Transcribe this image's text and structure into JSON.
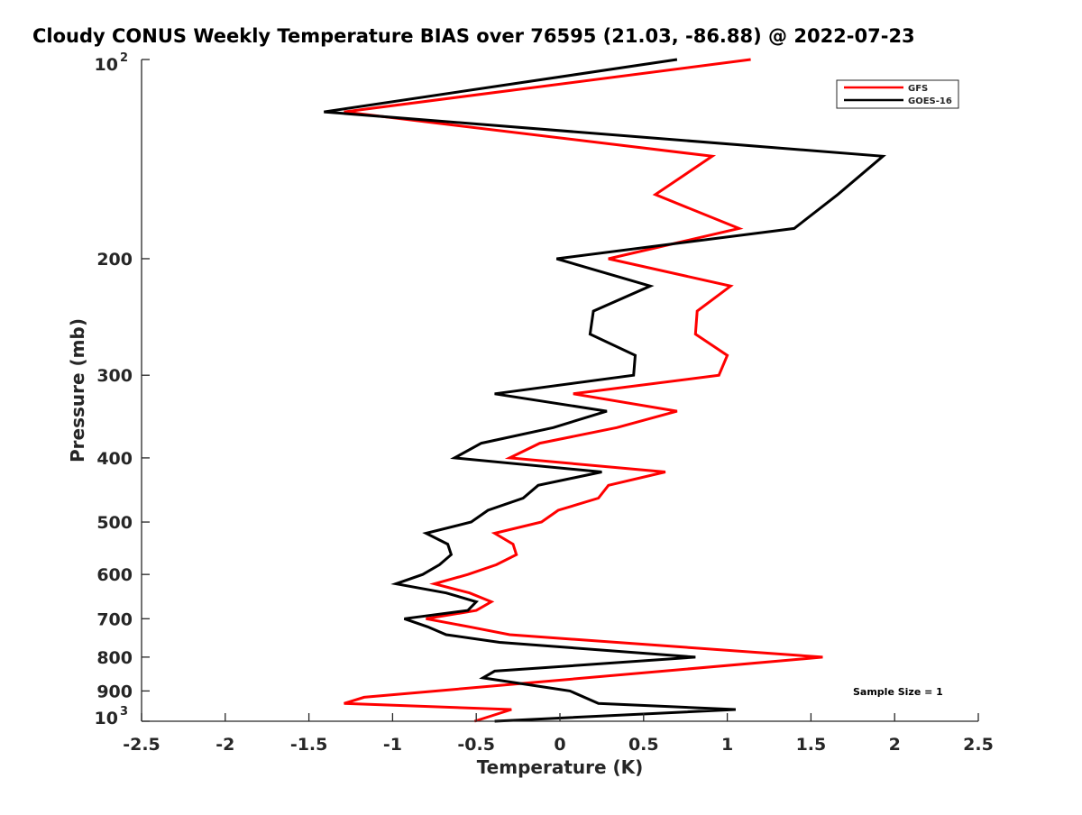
{
  "chart_data": {
    "type": "line",
    "title": "Cloudy CONUS Weekly Temperature BIAS over 76595 (21.03, -86.88) @ 2022-07-23",
    "xlabel": "Temperature (K)",
    "ylabel": "Pressure (mb)",
    "xlim": [
      -2.5,
      2.5
    ],
    "ylim": [
      100,
      1000
    ],
    "yscale": "log",
    "yreversed": true,
    "xticks": [
      -2.5,
      -2,
      -1.5,
      -1,
      -0.5,
      0,
      0.5,
      1,
      1.5,
      2,
      2.5
    ],
    "xtick_labels": [
      "-2.5",
      "-2",
      "-1.5",
      "-1",
      "-0.5",
      "0",
      "0.5",
      "1",
      "1.5",
      "2",
      "2.5"
    ],
    "yticks": [
      100,
      200,
      300,
      400,
      500,
      600,
      700,
      800,
      900,
      1000
    ],
    "ytick_labels": [
      {
        "base": "10",
        "exp": "2"
      },
      {
        "text": "200"
      },
      {
        "text": "300"
      },
      {
        "text": "400"
      },
      {
        "text": "500"
      },
      {
        "text": "600"
      },
      {
        "text": "700"
      },
      {
        "text": "800"
      },
      {
        "text": "900"
      },
      {
        "base": "10",
        "exp": "3"
      }
    ],
    "grid": false,
    "legend_position": "top-right",
    "annotation": "Sample Size = 1",
    "series": [
      {
        "name": "GFS",
        "color": "#ff0000",
        "pressure": [
          100,
          120,
          140,
          160,
          180,
          200,
          220,
          240,
          260,
          280,
          300,
          320,
          340,
          360,
          380,
          400,
          420,
          440,
          460,
          480,
          500,
          520,
          540,
          560,
          580,
          600,
          620,
          640,
          660,
          680,
          700,
          720,
          740,
          800,
          920,
          940,
          960,
          1000
        ],
        "temperature": [
          1.14,
          -1.29,
          0.91,
          0.57,
          1.07,
          0.29,
          1.02,
          0.82,
          0.81,
          1.0,
          0.95,
          0.08,
          0.7,
          0.34,
          -0.12,
          -0.3,
          0.63,
          0.29,
          0.23,
          -0.01,
          -0.11,
          -0.39,
          -0.28,
          -0.26,
          -0.38,
          -0.55,
          -0.75,
          -0.54,
          -0.41,
          -0.5,
          -0.8,
          -0.54,
          -0.3,
          1.57,
          -1.17,
          -1.29,
          -0.29,
          -0.51
        ]
      },
      {
        "name": "GOES-16",
        "color": "#000000",
        "pressure": [
          100,
          120,
          140,
          160,
          180,
          200,
          220,
          240,
          260,
          280,
          300,
          320,
          340,
          360,
          380,
          400,
          420,
          440,
          460,
          480,
          500,
          520,
          540,
          560,
          580,
          600,
          620,
          640,
          660,
          680,
          700,
          720,
          740,
          760,
          800,
          840,
          860,
          900,
          940,
          960,
          1000
        ],
        "temperature": [
          0.7,
          -1.41,
          1.93,
          1.66,
          1.4,
          -0.02,
          0.54,
          0.2,
          0.18,
          0.45,
          0.44,
          -0.39,
          0.28,
          -0.04,
          -0.47,
          -0.63,
          0.25,
          -0.13,
          -0.22,
          -0.43,
          -0.53,
          -0.8,
          -0.67,
          -0.65,
          -0.72,
          -0.82,
          -0.98,
          -0.68,
          -0.5,
          -0.55,
          -0.93,
          -0.79,
          -0.68,
          -0.36,
          0.81,
          -0.39,
          -0.46,
          0.06,
          0.23,
          1.05,
          -0.39
        ]
      }
    ]
  }
}
